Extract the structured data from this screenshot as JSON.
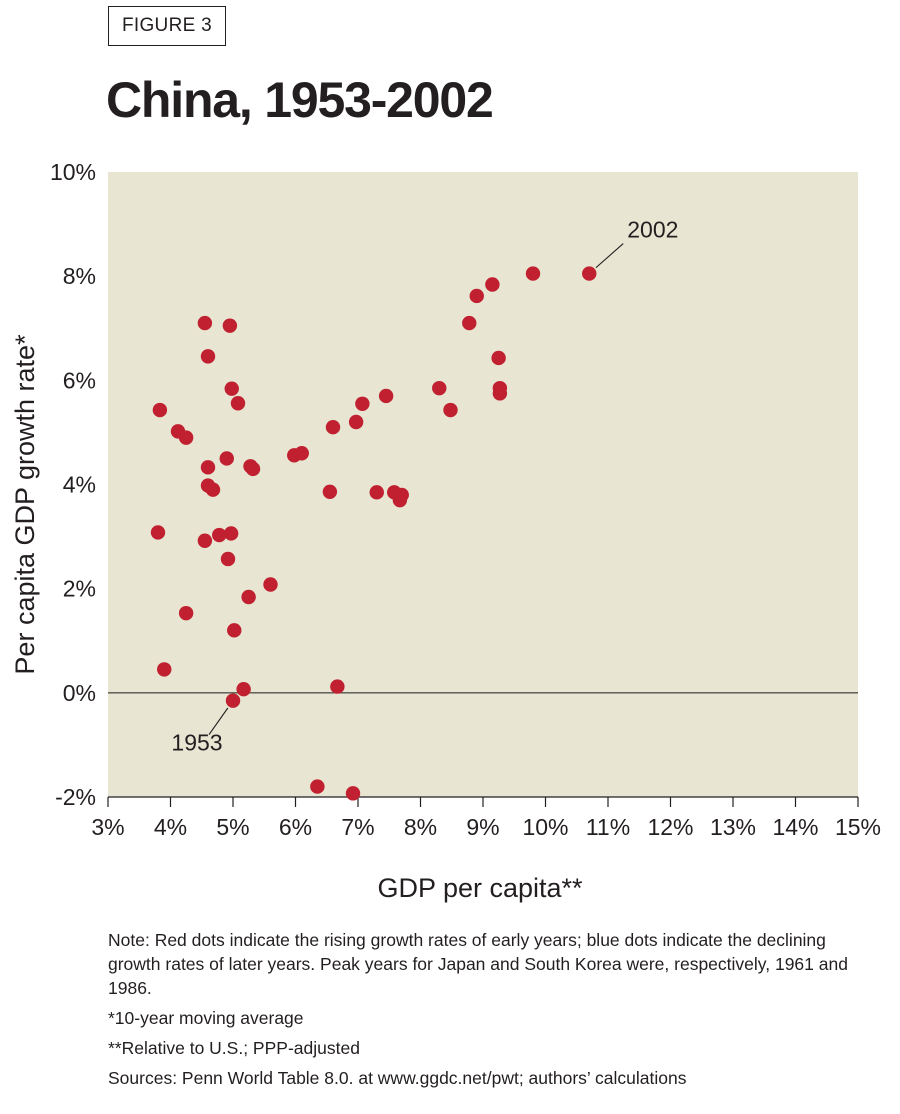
{
  "figure_label": "FIGURE 3",
  "title": "China, 1953-2002",
  "notes": {
    "note": "Note: Red dots indicate the rising growth rates of early years; blue dots indicate the declining growth rates of later years. Peak years for Japan and South Korea were, respectively, 1961 and 1986.",
    "footnote_1": "*10-year moving average",
    "footnote_2": "**Relative to U.S.; PPP-adjusted",
    "sources": "Sources: Penn World Table 8.0. at www.ggdc.net/pwt; authors’ calculations"
  },
  "colors": {
    "plot_background": "#e8e5d3",
    "dot": "#c0202f",
    "text": "#231f20"
  },
  "chart_data": {
    "type": "scatter",
    "title": "China, 1953-2002",
    "xlabel": "GDP per capita**",
    "ylabel": "Per capita GDP growth rate*",
    "xlim": [
      3,
      15
    ],
    "ylim": [
      -2,
      10
    ],
    "x_ticks": [
      "3%",
      "4%",
      "5%",
      "6%",
      "7%",
      "8%",
      "9%",
      "10%",
      "11%",
      "12%",
      "13%",
      "14%",
      "15%"
    ],
    "y_ticks": [
      "-2%",
      "0%",
      "2%",
      "4%",
      "6%",
      "8%",
      "10%"
    ],
    "zero_line": 0,
    "annotations": [
      {
        "text": "1953",
        "x": 5.0,
        "y": -0.15
      },
      {
        "text": "2002",
        "x": 10.7,
        "y": 8.05
      }
    ],
    "series": [
      {
        "name": "China",
        "points": [
          {
            "x": 5.0,
            "y": -0.15
          },
          {
            "x": 5.17,
            "y": 0.07
          },
          {
            "x": 6.35,
            "y": -1.8
          },
          {
            "x": 6.92,
            "y": -1.93
          },
          {
            "x": 6.67,
            "y": 0.12
          },
          {
            "x": 3.9,
            "y": 0.45
          },
          {
            "x": 4.25,
            "y": 1.53
          },
          {
            "x": 5.02,
            "y": 1.2
          },
          {
            "x": 5.25,
            "y": 1.84
          },
          {
            "x": 5.6,
            "y": 2.08
          },
          {
            "x": 4.92,
            "y": 2.57
          },
          {
            "x": 4.55,
            "y": 2.92
          },
          {
            "x": 4.78,
            "y": 3.03
          },
          {
            "x": 4.97,
            "y": 3.06
          },
          {
            "x": 3.8,
            "y": 3.08
          },
          {
            "x": 4.6,
            "y": 3.98
          },
          {
            "x": 4.68,
            "y": 3.9
          },
          {
            "x": 4.6,
            "y": 4.33
          },
          {
            "x": 4.9,
            "y": 4.5
          },
          {
            "x": 5.28,
            "y": 4.35
          },
          {
            "x": 5.32,
            "y": 4.3
          },
          {
            "x": 4.12,
            "y": 5.02
          },
          {
            "x": 4.25,
            "y": 4.9
          },
          {
            "x": 3.83,
            "y": 5.43
          },
          {
            "x": 5.08,
            "y": 5.56
          },
          {
            "x": 4.98,
            "y": 5.84
          },
          {
            "x": 4.6,
            "y": 6.46
          },
          {
            "x": 4.55,
            "y": 7.1
          },
          {
            "x": 4.95,
            "y": 7.05
          },
          {
            "x": 5.98,
            "y": 4.56
          },
          {
            "x": 6.1,
            "y": 4.6
          },
          {
            "x": 6.55,
            "y": 3.86
          },
          {
            "x": 6.6,
            "y": 5.1
          },
          {
            "x": 6.97,
            "y": 5.2
          },
          {
            "x": 7.07,
            "y": 5.55
          },
          {
            "x": 7.3,
            "y": 3.85
          },
          {
            "x": 7.45,
            "y": 5.7
          },
          {
            "x": 7.58,
            "y": 3.85
          },
          {
            "x": 7.67,
            "y": 3.7
          },
          {
            "x": 7.7,
            "y": 3.8
          },
          {
            "x": 8.3,
            "y": 5.85
          },
          {
            "x": 8.48,
            "y": 5.43
          },
          {
            "x": 8.78,
            "y": 7.1
          },
          {
            "x": 8.9,
            "y": 7.62
          },
          {
            "x": 9.15,
            "y": 7.84
          },
          {
            "x": 9.25,
            "y": 6.43
          },
          {
            "x": 9.27,
            "y": 5.85
          },
          {
            "x": 9.27,
            "y": 5.75
          },
          {
            "x": 9.8,
            "y": 8.05
          },
          {
            "x": 10.7,
            "y": 8.05
          }
        ]
      }
    ]
  }
}
